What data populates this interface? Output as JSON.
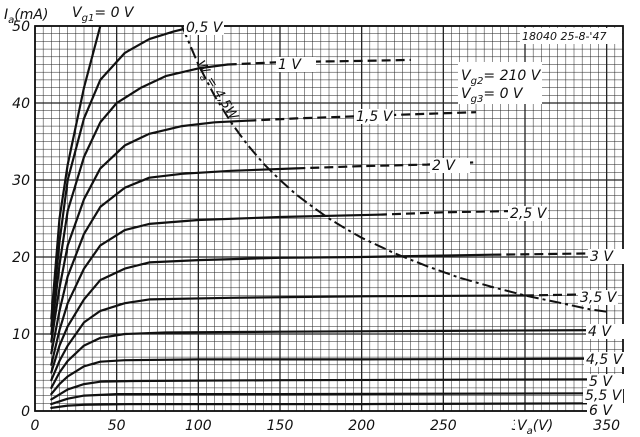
{
  "chart_data": {
    "type": "line",
    "xlabel": "V_a(V)",
    "ylabel": "I_a(mA)",
    "x_ticks": [
      "0",
      "50",
      "100",
      "150",
      "200",
      "250",
      "300",
      "350"
    ],
    "y_ticks": [
      "0",
      "10",
      "20",
      "30",
      "40",
      "50"
    ],
    "xlim": [
      0,
      360
    ],
    "ylim": [
      0,
      50
    ],
    "grid": true,
    "parameter_prefix": "V_g1=",
    "annotations": {
      "stamp": "18040 25-8-'47",
      "vg2": "V_g2= 210 V",
      "vg3": "V_g3= 0 V",
      "wa": "W_a= 4,5W"
    },
    "series": [
      {
        "name": "0 V",
        "label": "V_g1= 0 V",
        "dashed_from": null,
        "points": [
          [
            10,
            12
          ],
          [
            15,
            25
          ],
          [
            20,
            32
          ],
          [
            30,
            42
          ],
          [
            40,
            50
          ]
        ]
      },
      {
        "name": "0,5 V",
        "label": "0,5 V",
        "dashed_from": null,
        "points": [
          [
            10,
            11
          ],
          [
            15,
            22
          ],
          [
            20,
            30
          ],
          [
            30,
            38
          ],
          [
            40,
            43
          ],
          [
            55,
            46.5
          ],
          [
            70,
            48.3
          ],
          [
            85,
            49.3
          ],
          [
            95,
            49.8
          ]
        ]
      },
      {
        "name": "1 V",
        "label": "1 V",
        "dashed_from": 118,
        "points": [
          [
            10,
            10
          ],
          [
            15,
            19
          ],
          [
            20,
            26
          ],
          [
            30,
            33
          ],
          [
            40,
            37.5
          ],
          [
            50,
            40
          ],
          [
            65,
            42
          ],
          [
            80,
            43.5
          ],
          [
            100,
            44.5
          ],
          [
            118,
            45
          ],
          [
            150,
            45.3
          ],
          [
            180,
            45.4
          ],
          [
            210,
            45.5
          ],
          [
            230,
            45.6
          ]
        ]
      },
      {
        "name": "1,5 V",
        "label": "1,5 V",
        "dashed_from": 130,
        "points": [
          [
            10,
            9
          ],
          [
            15,
            16
          ],
          [
            20,
            21.5
          ],
          [
            30,
            27.5
          ],
          [
            40,
            31.5
          ],
          [
            55,
            34.5
          ],
          [
            70,
            36
          ],
          [
            90,
            37
          ],
          [
            110,
            37.5
          ],
          [
            130,
            37.7
          ],
          [
            160,
            38
          ],
          [
            200,
            38.3
          ],
          [
            240,
            38.6
          ],
          [
            270,
            38.8
          ]
        ]
      },
      {
        "name": "2 V",
        "label": "2 V",
        "dashed_from": 160,
        "points": [
          [
            10,
            7.5
          ],
          [
            15,
            13
          ],
          [
            20,
            17.5
          ],
          [
            30,
            23
          ],
          [
            40,
            26.5
          ],
          [
            55,
            29
          ],
          [
            70,
            30.3
          ],
          [
            90,
            30.8
          ],
          [
            120,
            31.2
          ],
          [
            160,
            31.5
          ],
          [
            200,
            31.8
          ],
          [
            240,
            32
          ],
          [
            270,
            32.3
          ]
        ]
      },
      {
        "name": "2,5 V",
        "label": "2,5 V",
        "dashed_from": 210,
        "points": [
          [
            10,
            6
          ],
          [
            15,
            10.5
          ],
          [
            20,
            14
          ],
          [
            30,
            18.5
          ],
          [
            40,
            21.5
          ],
          [
            55,
            23.5
          ],
          [
            70,
            24.3
          ],
          [
            100,
            24.8
          ],
          [
            150,
            25.2
          ],
          [
            210,
            25.5
          ],
          [
            250,
            25.8
          ],
          [
            300,
            26
          ]
        ]
      },
      {
        "name": "3 V",
        "label": "3 V",
        "dashed_from": 280,
        "points": [
          [
            10,
            5
          ],
          [
            15,
            8.5
          ],
          [
            20,
            11
          ],
          [
            30,
            14.5
          ],
          [
            40,
            17
          ],
          [
            55,
            18.5
          ],
          [
            70,
            19.3
          ],
          [
            100,
            19.6
          ],
          [
            150,
            19.9
          ],
          [
            200,
            20
          ],
          [
            280,
            20.3
          ],
          [
            320,
            20.4
          ],
          [
            350,
            20.5
          ]
        ]
      },
      {
        "name": "3,5 V",
        "label": "3,5 V",
        "dashed_from": 300,
        "points": [
          [
            10,
            4
          ],
          [
            15,
            6.5
          ],
          [
            20,
            8.5
          ],
          [
            30,
            11.5
          ],
          [
            40,
            13
          ],
          [
            55,
            14
          ],
          [
            70,
            14.5
          ],
          [
            120,
            14.7
          ],
          [
            200,
            14.9
          ],
          [
            300,
            15
          ],
          [
            350,
            15.2
          ]
        ]
      },
      {
        "name": "4 V",
        "label": "4 V",
        "dashed_from": null,
        "points": [
          [
            10,
            3
          ],
          [
            15,
            5
          ],
          [
            20,
            6.5
          ],
          [
            30,
            8.5
          ],
          [
            40,
            9.5
          ],
          [
            55,
            10
          ],
          [
            80,
            10.2
          ],
          [
            150,
            10.3
          ],
          [
            250,
            10.4
          ],
          [
            350,
            10.5
          ]
        ]
      },
      {
        "name": "4,5 V",
        "label": "4,5 V",
        "dashed_from": null,
        "points": [
          [
            10,
            2.2
          ],
          [
            15,
            3.5
          ],
          [
            20,
            4.5
          ],
          [
            30,
            5.8
          ],
          [
            40,
            6.4
          ],
          [
            55,
            6.6
          ],
          [
            100,
            6.7
          ],
          [
            200,
            6.7
          ],
          [
            350,
            6.8
          ]
        ]
      },
      {
        "name": "5 V",
        "label": "5 V",
        "dashed_from": null,
        "points": [
          [
            10,
            1.5
          ],
          [
            20,
            2.8
          ],
          [
            30,
            3.5
          ],
          [
            40,
            3.8
          ],
          [
            60,
            3.9
          ],
          [
            150,
            4
          ],
          [
            350,
            4.1
          ]
        ]
      },
      {
        "name": "5,5 V",
        "label": "5,5 V",
        "dashed_from": null,
        "points": [
          [
            10,
            0.9
          ],
          [
            20,
            1.6
          ],
          [
            30,
            2
          ],
          [
            50,
            2.2
          ],
          [
            150,
            2.2
          ],
          [
            350,
            2.3
          ]
        ]
      },
      {
        "name": "6 V",
        "label": "6 V",
        "dashed_from": null,
        "points": [
          [
            10,
            0.4
          ],
          [
            20,
            0.7
          ],
          [
            30,
            0.8
          ],
          [
            60,
            0.9
          ],
          [
            200,
            0.9
          ],
          [
            350,
            1
          ]
        ]
      }
    ],
    "power_limit_curve": {
      "name": "W_a= 4,5W",
      "points": [
        [
          90,
          50
        ],
        [
          100,
          45
        ],
        [
          110,
          40.9
        ],
        [
          120,
          37.5
        ],
        [
          130,
          34.6
        ],
        [
          140,
          32.1
        ],
        [
          150,
          30
        ],
        [
          160,
          28.1
        ],
        [
          170,
          26.5
        ],
        [
          180,
          25
        ],
        [
          190,
          23.7
        ],
        [
          200,
          22.5
        ],
        [
          220,
          20.5
        ],
        [
          240,
          18.8
        ],
        [
          260,
          17.3
        ],
        [
          280,
          16.1
        ],
        [
          300,
          15
        ],
        [
          320,
          14.1
        ],
        [
          340,
          13.2
        ],
        [
          350,
          12.9
        ]
      ]
    }
  }
}
